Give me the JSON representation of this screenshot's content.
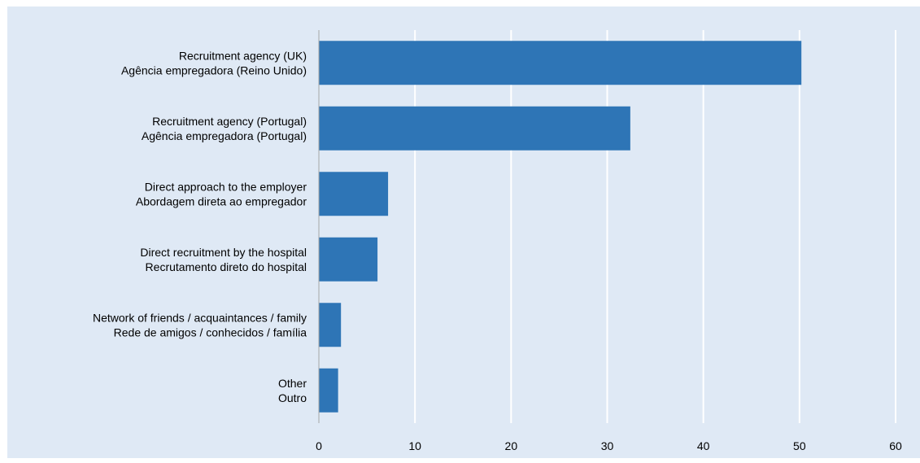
{
  "chart_data": {
    "type": "bar",
    "orientation": "horizontal",
    "categories": [
      [
        "Recruitment agency (UK)",
        "Agência empregadora (Reino Unido)"
      ],
      [
        "Recruitment agency (Portugal)",
        "Agência empregadora (Portugal)"
      ],
      [
        "Direct approach to the employer",
        "Abordagem direta ao empregador"
      ],
      [
        "Direct recruitment by the hospital",
        "Recrutamento direto do hospital"
      ],
      [
        "Network of friends / acquaintances / family",
        "Rede de amigos / conhecidos / família"
      ],
      [
        "Other",
        "Outro"
      ]
    ],
    "values": [
      50.2,
      32.4,
      7.2,
      6.1,
      2.3,
      2.0
    ],
    "xlim": [
      0,
      60
    ],
    "xticks": [
      "0",
      "10",
      "20",
      "30",
      "40",
      "50",
      "60"
    ],
    "title": "",
    "xlabel": "",
    "ylabel": "",
    "grid": "vertical",
    "colors": {
      "bar": "#2e75b6",
      "background": "#dfe9f5",
      "gridline": "#ffffff",
      "axis": "#a6a6a6"
    }
  }
}
